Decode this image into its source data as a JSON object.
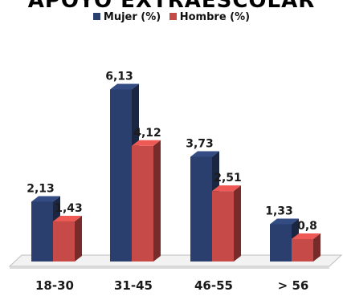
{
  "chart_data": {
    "type": "bar",
    "title": "APOYO EXTRAESCOLAR",
    "categories": [
      "18-30",
      "31-45",
      "46-55",
      "> 56"
    ],
    "series": [
      {
        "name": "Mujer (%)",
        "values": [
          2.13,
          6.13,
          3.73,
          1.33
        ],
        "labels": [
          "2,13",
          "6,13",
          "3,73",
          "1,33"
        ],
        "color": "#2b3f6e"
      },
      {
        "name": "Hombre (%)",
        "values": [
          1.43,
          4.12,
          2.51,
          0.8
        ],
        "labels": [
          "1,43",
          "4,12",
          "2,51",
          "0,8"
        ],
        "color": "#c64a47"
      }
    ],
    "ylim": [
      0,
      7
    ],
    "grid": false,
    "legend": "top-center",
    "style": "3d-column"
  }
}
